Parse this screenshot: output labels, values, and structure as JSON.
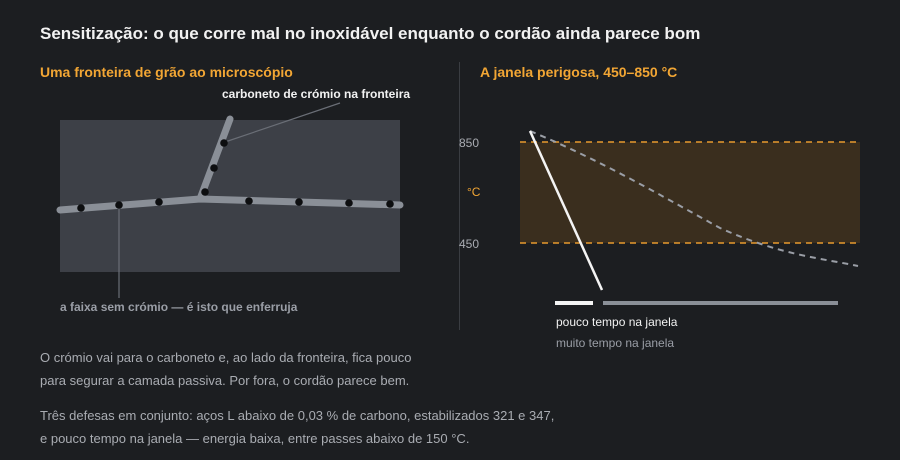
{
  "title": "Sensitização: o que corre mal no inoxidável enquanto o cordão ainda parece bom",
  "left_panel": {
    "title": "Uma fronteira de grão ao microscópio",
    "carbide_label": "carboneto de crómio na fronteira",
    "zone_label": "a faixa sem crómio — é isto que enferruja"
  },
  "right_panel": {
    "title": "A janela perigosa, 450–850 °C",
    "tick_top": "850",
    "tick_bottom": "450",
    "unit": "°C",
    "legend_short": "pouco tempo na janela",
    "legend_long": "muito tempo na janela"
  },
  "paragraphs": {
    "p1_line1": "O crómio vai para o carboneto e, ao lado da fronteira, fica pouco",
    "p1_line2": "para segurar a camada passiva. Por fora, o cordão parece bem.",
    "p2_line1": "Três defesas em conjunto: aços L abaixo de 0,03 % de carbono, estabilizados 321 e 347,",
    "p2_line2": "e pouco tempo na janela — energia baixa, entre passes abaixo de 150 °C."
  },
  "colors": {
    "accent": "#f2a634",
    "background": "#1c1e21",
    "grain_panel": "#3d4047",
    "window_band": "#3a2e1e"
  }
}
